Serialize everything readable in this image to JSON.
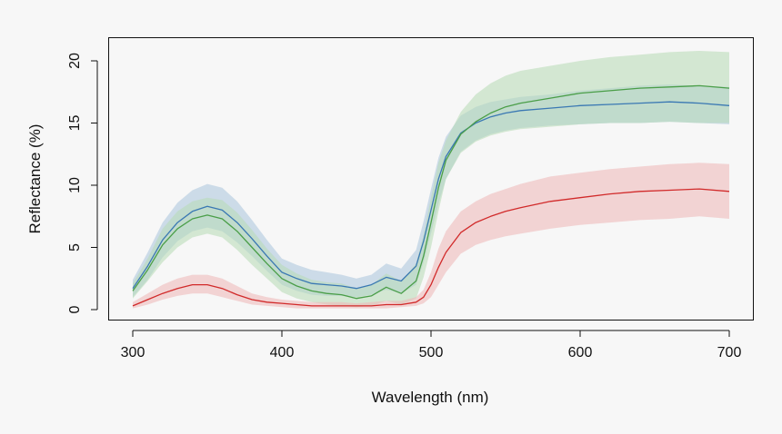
{
  "chart_data": {
    "type": "line",
    "title": "",
    "xlabel": "Wavelength (nm)",
    "ylabel": "Reflectance (%)",
    "xlim": [
      300,
      700
    ],
    "ylim": [
      0,
      20
    ],
    "xticks": [
      300,
      400,
      500,
      600,
      700
    ],
    "yticks": [
      0,
      5,
      10,
      15,
      20
    ],
    "grid": false,
    "legend": "none",
    "x": [
      300,
      310,
      320,
      330,
      340,
      350,
      360,
      370,
      380,
      390,
      400,
      410,
      420,
      430,
      440,
      450,
      460,
      470,
      480,
      490,
      495,
      500,
      505,
      510,
      520,
      530,
      540,
      550,
      560,
      580,
      600,
      620,
      640,
      660,
      680,
      700
    ],
    "series": [
      {
        "name": "blue",
        "line_color": "#3a78b3",
        "band_color": "#a9c4dc",
        "values": [
          1.7,
          3.5,
          5.6,
          7.0,
          7.9,
          8.3,
          8.0,
          7.0,
          5.7,
          4.3,
          3.0,
          2.5,
          2.1,
          2.0,
          1.9,
          1.7,
          2.0,
          2.6,
          2.3,
          3.5,
          5.5,
          8.0,
          10.5,
          12.3,
          14.2,
          15.0,
          15.5,
          15.8,
          16.0,
          16.2,
          16.4,
          16.5,
          16.6,
          16.7,
          16.6,
          16.4
        ],
        "lower": [
          1.0,
          2.4,
          4.2,
          5.5,
          6.3,
          6.6,
          6.3,
          5.4,
          4.3,
          3.1,
          2.0,
          1.5,
          1.2,
          1.1,
          1.1,
          1.0,
          1.2,
          1.6,
          1.3,
          2.0,
          3.8,
          6.1,
          8.5,
          10.5,
          12.7,
          13.6,
          14.1,
          14.4,
          14.6,
          14.8,
          14.9,
          15.0,
          15.0,
          15.1,
          15.0,
          14.9
        ],
        "upper": [
          2.4,
          4.6,
          7.0,
          8.6,
          9.6,
          10.1,
          9.8,
          8.7,
          7.2,
          5.6,
          4.1,
          3.6,
          3.2,
          3.0,
          2.8,
          2.5,
          2.8,
          3.7,
          3.3,
          4.8,
          7.1,
          9.7,
          12.2,
          13.9,
          15.6,
          16.3,
          16.7,
          16.9,
          17.1,
          17.3,
          17.6,
          17.8,
          18.0,
          18.1,
          18.0,
          17.9
        ]
      },
      {
        "name": "green",
        "line_color": "#4a9e48",
        "band_color": "#b7dab4",
        "values": [
          1.5,
          3.2,
          5.2,
          6.5,
          7.3,
          7.6,
          7.3,
          6.3,
          5.0,
          3.7,
          2.5,
          1.9,
          1.5,
          1.3,
          1.2,
          0.9,
          1.1,
          1.8,
          1.3,
          2.3,
          4.3,
          7.0,
          9.8,
          12.0,
          14.1,
          15.1,
          15.8,
          16.3,
          16.6,
          17.0,
          17.4,
          17.6,
          17.8,
          17.9,
          18.0,
          17.8
        ],
        "lower": [
          0.9,
          2.3,
          3.8,
          5.0,
          5.8,
          6.1,
          5.8,
          4.8,
          3.6,
          2.5,
          1.4,
          0.9,
          0.6,
          0.4,
          0.3,
          0.2,
          0.3,
          0.7,
          0.4,
          0.9,
          2.6,
          5.0,
          7.9,
          10.5,
          12.6,
          13.5,
          14.0,
          14.3,
          14.5,
          14.7,
          14.9,
          15.0,
          15.0,
          15.1,
          15.0,
          15.0
        ],
        "upper": [
          2.1,
          4.1,
          6.5,
          7.9,
          8.7,
          9.0,
          8.8,
          7.8,
          6.4,
          4.9,
          3.6,
          2.9,
          2.4,
          2.2,
          2.1,
          1.7,
          2.0,
          2.9,
          2.3,
          3.7,
          6.0,
          9.0,
          11.8,
          13.6,
          15.9,
          17.3,
          18.2,
          18.8,
          19.2,
          19.6,
          20.0,
          20.3,
          20.5,
          20.7,
          20.8,
          20.7
        ]
      },
      {
        "name": "red",
        "line_color": "#d12a2a",
        "band_color": "#efb6b6",
        "values": [
          0.3,
          0.8,
          1.3,
          1.7,
          2.0,
          2.0,
          1.7,
          1.2,
          0.8,
          0.6,
          0.5,
          0.4,
          0.3,
          0.3,
          0.3,
          0.3,
          0.3,
          0.4,
          0.4,
          0.6,
          1.0,
          2.0,
          3.4,
          4.6,
          6.2,
          7.0,
          7.5,
          7.9,
          8.2,
          8.7,
          9.0,
          9.3,
          9.5,
          9.6,
          9.7,
          9.5
        ],
        "lower": [
          0.1,
          0.4,
          0.8,
          1.1,
          1.3,
          1.3,
          1.0,
          0.7,
          0.4,
          0.3,
          0.2,
          0.1,
          0.1,
          0.1,
          0.1,
          0.1,
          0.1,
          0.1,
          0.2,
          0.3,
          0.5,
          1.0,
          2.0,
          3.0,
          4.5,
          5.2,
          5.6,
          5.9,
          6.1,
          6.5,
          6.8,
          7.0,
          7.2,
          7.3,
          7.5,
          7.3
        ],
        "upper": [
          0.6,
          1.3,
          2.0,
          2.5,
          2.8,
          2.8,
          2.5,
          1.9,
          1.3,
          1.0,
          0.8,
          0.7,
          0.6,
          0.6,
          0.6,
          0.5,
          0.6,
          0.7,
          0.7,
          1.0,
          1.6,
          3.0,
          4.9,
          6.3,
          7.9,
          8.7,
          9.3,
          9.7,
          10.1,
          10.7,
          11.0,
          11.3,
          11.5,
          11.7,
          11.8,
          11.7
        ]
      }
    ]
  }
}
